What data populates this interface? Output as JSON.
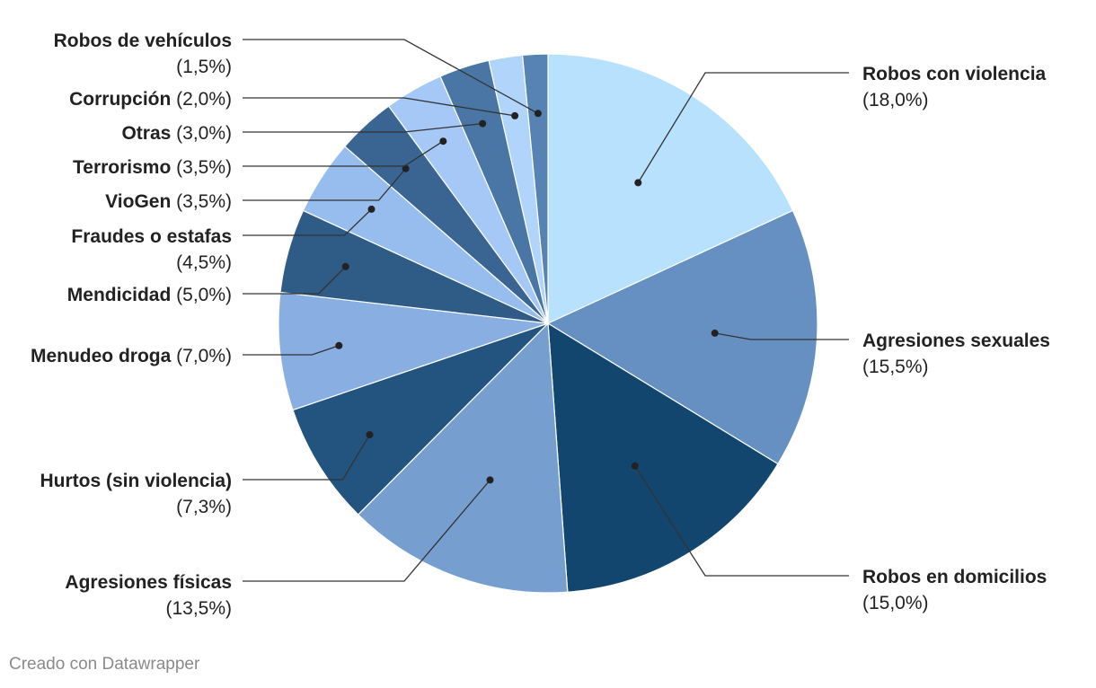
{
  "chart_data": {
    "type": "pie",
    "title": "",
    "unit": "%",
    "slices": [
      {
        "name": "Robos con violencia",
        "pct_label": "(18,0%)",
        "value": 18.0,
        "color": "#b7e1fc"
      },
      {
        "name": "Agresiones sexuales",
        "pct_label": "(15,5%)",
        "value": 15.5,
        "color": "#6590c1"
      },
      {
        "name": "Robos en domicilios",
        "pct_label": "(15,0%)",
        "value": 15.0,
        "color": "#12466f"
      },
      {
        "name": "Agresiones físicas",
        "pct_label": "(13,5%)",
        "value": 13.5,
        "color": "#769fd0"
      },
      {
        "name": "Hurtos (sin violencia)",
        "pct_label": "(7,3%)",
        "value": 7.3,
        "color": "#23537f"
      },
      {
        "name": "Menudeo droga",
        "pct_label": "(7,0%)",
        "value": 7.0,
        "color": "#88aee2"
      },
      {
        "name": "Mendicidad",
        "pct_label": "(5,0%)",
        "value": 5.0,
        "color": "#2f5b87"
      },
      {
        "name": "Fraudes o estafas",
        "pct_label": "(4,5%)",
        "value": 4.5,
        "color": "#97bcee"
      },
      {
        "name": "VioGen",
        "pct_label": "(3,5%)",
        "value": 3.5,
        "color": "#3a6593"
      },
      {
        "name": "Terrorismo",
        "pct_label": "(3,5%)",
        "value": 3.5,
        "color": "#a5c8f6"
      },
      {
        "name": "Otras",
        "pct_label": "(3,0%)",
        "value": 3.0,
        "color": "#4a76a5"
      },
      {
        "name": "Corrupción",
        "pct_label": "(2,0%)",
        "value": 2.0,
        "color": "#b0d4fa"
      },
      {
        "name": "Robos de vehículos",
        "pct_label": "(1,5%)",
        "value": 1.5,
        "color": "#5683b4"
      }
    ]
  },
  "footer": {
    "credit": "Creado con Datawrapper"
  },
  "colors": {
    "leader_line": "#333333",
    "slice_border": "#ffffff",
    "credit_text": "#8a8a8a"
  }
}
